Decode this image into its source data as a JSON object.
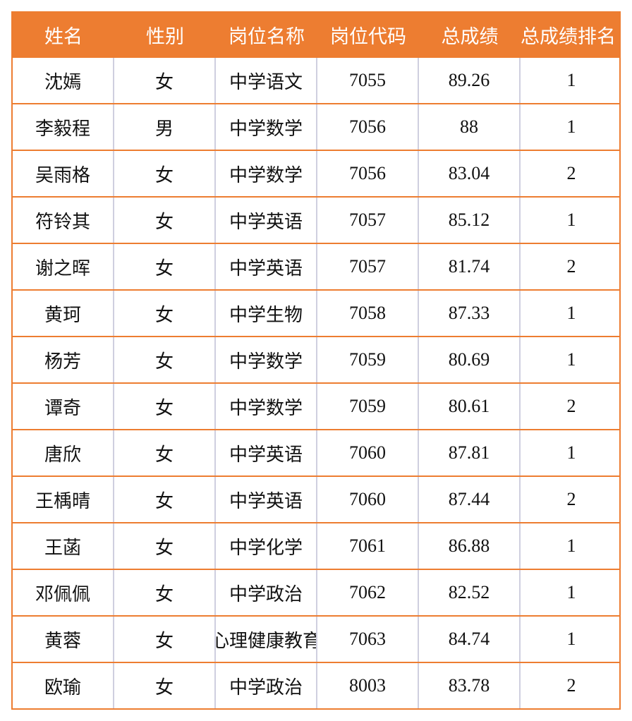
{
  "headers": [
    "姓名",
    "性别",
    "岗位名称",
    "岗位代码",
    "总成绩",
    "总成绩排名"
  ],
  "rows": [
    [
      "沈嫣",
      "女",
      "中学语文",
      "7055",
      "89.26",
      "1"
    ],
    [
      "李毅程",
      "男",
      "中学数学",
      "7056",
      "88",
      "1"
    ],
    [
      "吴雨格",
      "女",
      "中学数学",
      "7056",
      "83.04",
      "2"
    ],
    [
      "符铃其",
      "女",
      "中学英语",
      "7057",
      "85.12",
      "1"
    ],
    [
      "谢之晖",
      "女",
      "中学英语",
      "7057",
      "81.74",
      "2"
    ],
    [
      "黄珂",
      "女",
      "中学生物",
      "7058",
      "87.33",
      "1"
    ],
    [
      "杨芳",
      "女",
      "中学数学",
      "7059",
      "80.69",
      "1"
    ],
    [
      "谭奇",
      "女",
      "中学数学",
      "7059",
      "80.61",
      "2"
    ],
    [
      "唐欣",
      "女",
      "中学英语",
      "7060",
      "87.81",
      "1"
    ],
    [
      "王楀晴",
      "女",
      "中学英语",
      "7060",
      "87.44",
      "2"
    ],
    [
      "王菡",
      "女",
      "中学化学",
      "7061",
      "86.88",
      "1"
    ],
    [
      "邓佩佩",
      "女",
      "中学政治",
      "7062",
      "82.52",
      "1"
    ],
    [
      "黄蓉",
      "女",
      "心理健康教育",
      "7063",
      "84.74",
      "1"
    ],
    [
      "欧瑜",
      "女",
      "中学政治",
      "8003",
      "83.78",
      "2"
    ]
  ],
  "colors": {
    "header_bg": "#ed7d31",
    "row_border": "#ed7d31",
    "col_border": "#cfcfdf"
  }
}
